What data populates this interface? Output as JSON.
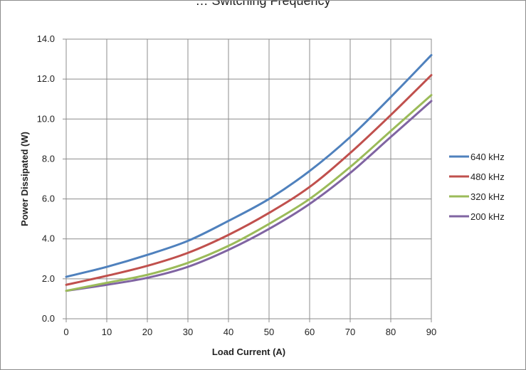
{
  "chart_data": {
    "type": "line",
    "title": "… Switching Frequency",
    "xlabel": "Load Current (A)",
    "ylabel": "Power Dissipated (W)",
    "x": [
      0,
      10,
      20,
      30,
      40,
      50,
      60,
      70,
      80,
      90
    ],
    "xlim": [
      0,
      90
    ],
    "ylim": [
      0,
      14
    ],
    "x_ticks": [
      "0",
      "10",
      "20",
      "30",
      "40",
      "50",
      "60",
      "70",
      "80",
      "90"
    ],
    "y_ticks": [
      "0.0",
      "2.0",
      "4.0",
      "6.0",
      "8.0",
      "10.0",
      "12.0",
      "14.0"
    ],
    "grid": true,
    "legend_position": "right",
    "series": [
      {
        "name": "640 kHz",
        "color": "#4f81bd",
        "values": [
          2.1,
          2.6,
          3.2,
          3.9,
          4.9,
          6.0,
          7.4,
          9.1,
          11.1,
          13.2
        ]
      },
      {
        "name": "480 kHz",
        "color": "#c0504d",
        "values": [
          1.7,
          2.15,
          2.65,
          3.3,
          4.2,
          5.3,
          6.6,
          8.3,
          10.2,
          12.2
        ]
      },
      {
        "name": "320 kHz",
        "color": "#9bbb59",
        "values": [
          1.4,
          1.8,
          2.2,
          2.8,
          3.65,
          4.75,
          6.0,
          7.6,
          9.4,
          11.2
        ]
      },
      {
        "name": "200 kHz",
        "color": "#8064a2",
        "values": [
          1.4,
          1.7,
          2.05,
          2.6,
          3.45,
          4.5,
          5.75,
          7.3,
          9.1,
          10.9
        ]
      }
    ]
  }
}
